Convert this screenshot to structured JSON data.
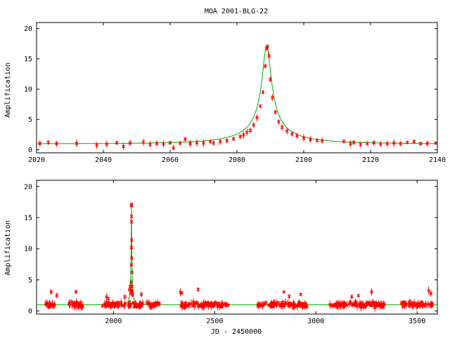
{
  "chart_data": [
    {
      "type": "scatter",
      "title": "MOA 2001-BLG-22",
      "ylabel": "Amplification",
      "xlabel": "",
      "xlim": [
        2020,
        2140
      ],
      "ylim": [
        -0.5,
        21
      ],
      "x_ticks": [
        "2020",
        "2040",
        "2060",
        "2080",
        "2100",
        "2120",
        "2140"
      ],
      "y_ticks": [
        "0",
        "5",
        "10",
        "15",
        "20"
      ],
      "grid": false,
      "colors": {
        "points": "#ff0000",
        "model": "#00b000"
      },
      "model": {
        "t0": 2088.9,
        "tE": 22,
        "u0": 0.058
      },
      "points": [
        [
          2021,
          1.05
        ],
        [
          2023.5,
          1.2
        ],
        [
          2026,
          1.0
        ],
        [
          2032,
          1.05
        ],
        [
          2038,
          0.75
        ],
        [
          2041,
          0.95
        ],
        [
          2044,
          1.15
        ],
        [
          2046,
          0.55
        ],
        [
          2048,
          1.1
        ],
        [
          2052,
          1.25
        ],
        [
          2054,
          0.9
        ],
        [
          2056,
          1.05
        ],
        [
          2058,
          0.95
        ],
        [
          2060,
          1.15
        ],
        [
          2061,
          0.3
        ],
        [
          2063,
          1.1
        ],
        [
          2064.5,
          1.75
        ],
        [
          2066,
          1.05
        ],
        [
          2068,
          1.15
        ],
        [
          2070,
          1.1
        ],
        [
          2072,
          1.35
        ],
        [
          2073,
          1.1
        ],
        [
          2075,
          1.35
        ],
        [
          2077,
          1.5
        ],
        [
          2079,
          1.8
        ],
        [
          2081,
          2.2
        ],
        [
          2082,
          2.45
        ],
        [
          2083,
          2.9
        ],
        [
          2084,
          3.2
        ],
        [
          2085,
          4.1
        ],
        [
          2086,
          5.3
        ],
        [
          2087,
          7.2
        ],
        [
          2087.8,
          9.5
        ],
        [
          2088.5,
          13.8
        ],
        [
          2088.9,
          16.7
        ],
        [
          2089.2,
          17.0
        ],
        [
          2089.6,
          15.5
        ],
        [
          2090,
          11.6
        ],
        [
          2090.6,
          8.6
        ],
        [
          2091.5,
          6.2
        ],
        [
          2092.5,
          4.6
        ],
        [
          2093.5,
          3.7
        ],
        [
          2095,
          3.1
        ],
        [
          2096.5,
          2.6
        ],
        [
          2098,
          2.3
        ],
        [
          2100,
          1.95
        ],
        [
          2102,
          1.7
        ],
        [
          2104,
          1.55
        ],
        [
          2105.5,
          1.5
        ],
        [
          2112,
          1.4
        ],
        [
          2114,
          1.0
        ],
        [
          2115,
          1.2
        ],
        [
          2117,
          0.85
        ],
        [
          2119,
          1.05
        ],
        [
          2121,
          1.15
        ],
        [
          2123,
          0.95
        ],
        [
          2125,
          1.0
        ],
        [
          2127,
          1.1
        ],
        [
          2129,
          1.0
        ],
        [
          2131,
          1.2
        ],
        [
          2133,
          1.35
        ],
        [
          2135,
          1.0
        ],
        [
          2137,
          1.05
        ],
        [
          2139.5,
          1.1
        ]
      ]
    },
    {
      "type": "scatter",
      "title": "",
      "ylabel": "Amplification",
      "xlabel": "JD - 2450000",
      "xlim": [
        1620,
        3600
      ],
      "ylim": [
        -0.5,
        21
      ],
      "x_ticks": [
        "2000",
        "2500",
        "3000",
        "3500"
      ],
      "y_ticks": [
        "0",
        "5",
        "10",
        "15",
        "20"
      ],
      "grid": false,
      "colors": {
        "points": "#ff0000",
        "model": "#00b000"
      },
      "seasons": [
        [
          1660,
          1720
        ],
        [
          1770,
          1850
        ],
        [
          1945,
          2230
        ],
        [
          2330,
          2570
        ],
        [
          2710,
          2960
        ],
        [
          3070,
          3340
        ],
        [
          3420,
          3580
        ]
      ],
      "peak_points": [
        [
          2086,
          2.8
        ],
        [
          2087,
          3.3
        ],
        [
          2087.5,
          4.6
        ],
        [
          2088,
          7.4
        ],
        [
          2088.5,
          10.2
        ],
        [
          2088.8,
          14.3
        ],
        [
          2089,
          16.9
        ],
        [
          2089.3,
          17.1
        ],
        [
          2089.6,
          15.2
        ],
        [
          2090,
          11.4
        ],
        [
          2090.5,
          8.5
        ],
        [
          2091,
          6.2
        ],
        [
          2092,
          3.9
        ],
        [
          2093,
          3.2
        ],
        [
          2094,
          2.6
        ]
      ]
    }
  ]
}
